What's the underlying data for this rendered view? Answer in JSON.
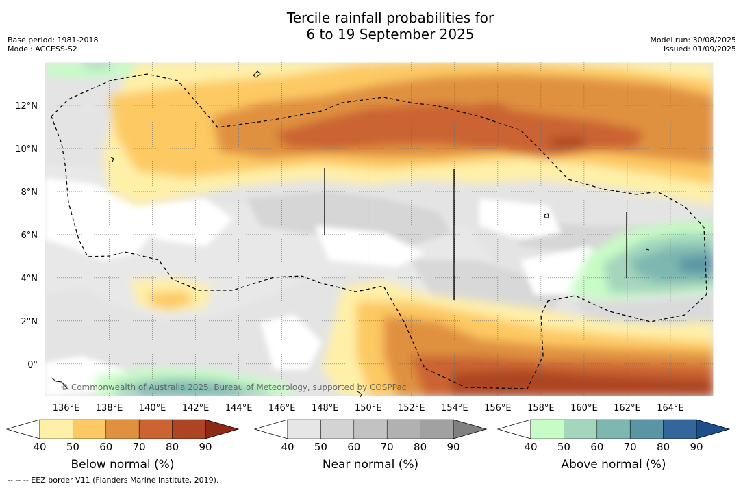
{
  "title_line1": "Tercile rainfall probabilities for",
  "title_line2": "6 to 19 September 2025",
  "meta_left": [
    "Base period: 1981-2018",
    "Model: ACCESS-S2"
  ],
  "meta_right": [
    "Model run: 30/08/2025",
    "Issued: 01/09/2025"
  ],
  "copyright": "© Commonwealth of Australia 2025, Bureau of Meteorology, supported by COSPPac",
  "footnote": "--  --  -- EEZ border V11 (Flanders Marine Institute, 2019).",
  "map": {
    "lon_range": [
      135,
      166
    ],
    "lat_range": [
      -1.5,
      14
    ],
    "lon_ticks": [
      "136°E",
      "138°E",
      "140°E",
      "142°E",
      "144°E",
      "146°E",
      "148°E",
      "150°E",
      "152°E",
      "154°E",
      "156°E",
      "158°E",
      "160°E",
      "162°E",
      "164°E"
    ],
    "lat_ticks": [
      "0°",
      "2°N",
      "4°N",
      "6°N",
      "8°N",
      "10°N",
      "12°N"
    ]
  },
  "colorbars": [
    {
      "label": "Below normal (%)",
      "ticks": [
        "40",
        "50",
        "60",
        "70",
        "80",
        "90"
      ],
      "colors": [
        "#ffffff",
        "#fff0a8",
        "#fdc964",
        "#e09140",
        "#cb6332",
        "#ad4423",
        "#8c2a17"
      ]
    },
    {
      "label": "Near normal (%)",
      "ticks": [
        "40",
        "50",
        "60",
        "70",
        "80",
        "90"
      ],
      "colors": [
        "#ffffff",
        "#e6e6e6",
        "#d3d3d3",
        "#c2c2c2",
        "#b1b1b1",
        "#a1a1a1",
        "#808080"
      ]
    },
    {
      "label": "Above normal (%)",
      "ticks": [
        "40",
        "50",
        "60",
        "70",
        "80",
        "90"
      ],
      "colors": [
        "#ffffff",
        "#c8fcc6",
        "#a3d6bc",
        "#7db7b0",
        "#5b95a4",
        "#34659b",
        "#1e4f8a"
      ]
    }
  ]
}
